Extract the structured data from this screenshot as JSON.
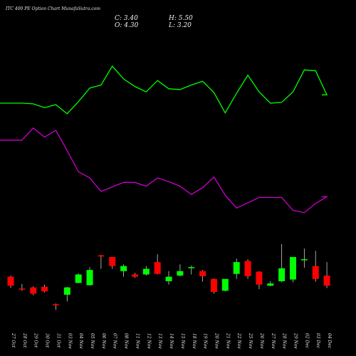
{
  "title": "ITC 400  PE Option  Chart MunafaSutra.com",
  "readout": {
    "close": "C: 3.40",
    "high": "H: 5.50",
    "open": "O: 4.30",
    "low": "L: 3.20"
  },
  "colors": {
    "background": "#000000",
    "up": "#00ff00",
    "down": "#ff0000",
    "line_green": "#00ff00",
    "line_magenta": "#cc00cc",
    "text": "#e6e6e6"
  },
  "chart_data": {
    "type": "candlestick",
    "categories": [
      "27 Oct",
      "28 Oct",
      "29 Oct",
      "30 Oct",
      "31 Oct",
      "03 Nov",
      "04 Nov",
      "05 Nov",
      "06 Nov",
      "07 Nov",
      "08 Nov",
      "11 Nov",
      "12 Nov",
      "13 Nov",
      "14 Nov",
      "15 Nov",
      "18 Nov",
      "19 Nov",
      "20 Nov",
      "21 Nov",
      "22 Nov",
      "25 Nov",
      "26 Nov",
      "27 Nov",
      "28 Nov",
      "29 Nov",
      "02 Dec",
      "03 Dec",
      "04 Dec"
    ],
    "candles": [
      {
        "open": 4.2,
        "high": 4.3,
        "low": 3.2,
        "close": 3.4
      },
      {
        "open": 3.15,
        "high": 3.55,
        "low": 2.95,
        "close": 3.1
      },
      {
        "open": 3.25,
        "high": 3.35,
        "low": 2.55,
        "close": 2.7
      },
      {
        "open": 3.3,
        "high": 3.5,
        "low": 2.8,
        "close": 2.9
      },
      {
        "open": 1.75,
        "high": 1.82,
        "low": 1.25,
        "close": 1.7
      },
      {
        "open": 2.6,
        "high": 3.3,
        "low": 2.0,
        "close": 3.25
      },
      {
        "open": 3.65,
        "high": 4.5,
        "low": 3.6,
        "close": 4.4
      },
      {
        "open": 3.45,
        "high": 5.05,
        "low": 3.4,
        "close": 4.8
      },
      {
        "open": 6.1,
        "high": 6.15,
        "low": 4.9,
        "close": 6.0
      },
      {
        "open": 5.95,
        "high": 5.95,
        "low": 4.9,
        "close": 5.15
      },
      {
        "open": 4.7,
        "high": 5.3,
        "low": 4.2,
        "close": 5.15
      },
      {
        "open": 4.4,
        "high": 4.55,
        "low": 4.1,
        "close": 4.2
      },
      {
        "open": 4.4,
        "high": 5.15,
        "low": 4.3,
        "close": 4.9
      },
      {
        "open": 5.5,
        "high": 6.2,
        "low": 4.4,
        "close": 4.45
      },
      {
        "open": 3.8,
        "high": 4.7,
        "low": 3.5,
        "close": 4.2
      },
      {
        "open": 4.3,
        "high": 5.3,
        "low": 4.25,
        "close": 4.7
      },
      {
        "open": 5.0,
        "high": 5.2,
        "low": 4.4,
        "close": 5.05
      },
      {
        "open": 4.7,
        "high": 4.8,
        "low": 3.75,
        "close": 4.25
      },
      {
        "open": 4.0,
        "high": 4.05,
        "low": 2.7,
        "close": 2.85
      },
      {
        "open": 2.95,
        "high": 4.0,
        "low": 2.9,
        "close": 4.0
      },
      {
        "open": 4.45,
        "high": 5.8,
        "low": 4.0,
        "close": 5.5
      },
      {
        "open": 5.6,
        "high": 5.75,
        "low": 4.0,
        "close": 4.25
      },
      {
        "open": 4.65,
        "high": 4.7,
        "low": 3.1,
        "close": 3.5
      },
      {
        "open": 3.4,
        "high": 3.8,
        "low": 3.35,
        "close": 3.6
      },
      {
        "open": 3.8,
        "high": 7.1,
        "low": 3.7,
        "close": 4.95
      },
      {
        "open": 3.95,
        "high": 5.95,
        "low": 3.7,
        "close": 5.95
      },
      {
        "open": 5.7,
        "high": 6.7,
        "low": 5.0,
        "close": 5.75
      },
      {
        "open": 5.15,
        "high": 6.5,
        "low": 3.75,
        "close": 4.0
      },
      {
        "open": 4.3,
        "high": 5.5,
        "low": 3.2,
        "close": 3.4
      }
    ],
    "line_green": [
      26.9,
      26.9,
      26.8,
      26.3,
      26.7,
      25.5,
      27.1,
      28.9,
      29.3,
      31.8,
      30.1,
      29.1,
      28.4,
      29.9,
      28.8,
      28.7,
      29.3,
      29.8,
      28.3,
      25.6,
      28.2,
      30.6,
      28.4,
      26.9,
      27.0,
      28.4,
      31.3,
      31.2,
      28.0
    ],
    "line_magenta": [
      22.0,
      22.0,
      23.6,
      22.4,
      23.3,
      20.6,
      17.8,
      17.0,
      15.2,
      15.8,
      16.4,
      16.4,
      15.9,
      17.0,
      16.5,
      15.9,
      14.8,
      15.7,
      17.1,
      14.7,
      13.0,
      13.7,
      14.4,
      14.4,
      14.4,
      12.7,
      12.4,
      13.6,
      14.5
    ]
  }
}
